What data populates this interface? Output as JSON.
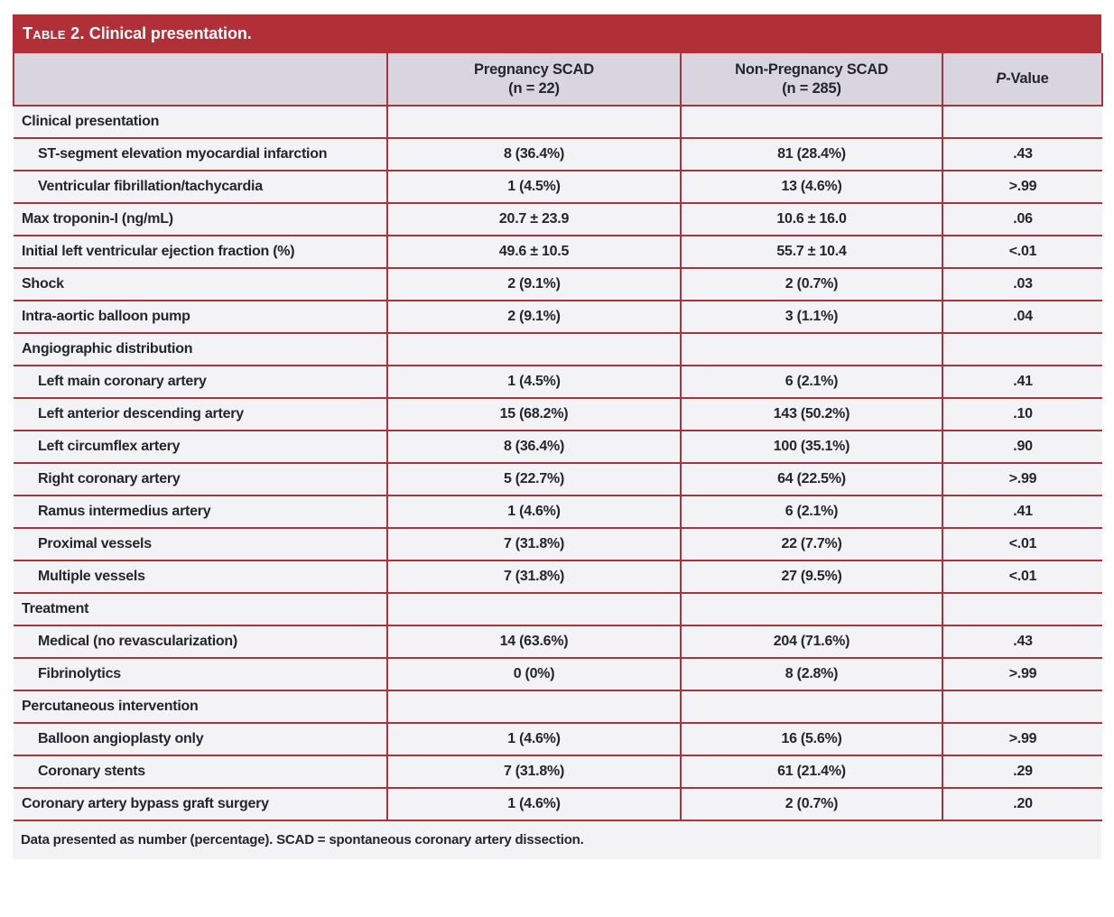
{
  "colors": {
    "bar-red": "#b12f37",
    "line-red": "#a8343b",
    "header-lavender": "#d8d5de",
    "row-bg": "#f3f2f4",
    "text-dark": "#24262d"
  },
  "table": {
    "title": {
      "smallcaps": "Table 2.",
      "rest": "Clinical presentation."
    },
    "columns": {
      "pregnancy": {
        "line1": "Pregnancy SCAD",
        "line2": "(n = 22)"
      },
      "non_pregnancy": {
        "line1": "Non-Pregnancy SCAD",
        "line2": "(n = 285)"
      },
      "p_value": {
        "italic": "P",
        "rest": "-Value"
      }
    },
    "rows": [
      {
        "label": "Clinical presentation",
        "indent": false,
        "section": true,
        "pregnancy": "",
        "non_pregnancy": "",
        "p_value": ""
      },
      {
        "label": "ST-segment elevation myocardial infarction",
        "indent": true,
        "section": false,
        "pregnancy": "8 (36.4%)",
        "non_pregnancy": "81 (28.4%)",
        "p_value": ".43"
      },
      {
        "label": "Ventricular fibrillation/tachycardia",
        "indent": true,
        "section": false,
        "pregnancy": "1 (4.5%)",
        "non_pregnancy": "13 (4.6%)",
        "p_value": ">.99"
      },
      {
        "label": "Max troponin-I (ng/mL)",
        "indent": false,
        "section": false,
        "pregnancy": "20.7 ± 23.9",
        "non_pregnancy": "10.6 ± 16.0",
        "p_value": ".06"
      },
      {
        "label": "Initial left ventricular ejection fraction (%)",
        "indent": false,
        "section": false,
        "pregnancy": "49.6 ± 10.5",
        "non_pregnancy": "55.7 ± 10.4",
        "p_value": "<.01"
      },
      {
        "label": "Shock",
        "indent": false,
        "section": false,
        "pregnancy": "2 (9.1%)",
        "non_pregnancy": "2 (0.7%)",
        "p_value": ".03"
      },
      {
        "label": "Intra-aortic balloon pump",
        "indent": false,
        "section": false,
        "pregnancy": "2 (9.1%)",
        "non_pregnancy": "3 (1.1%)",
        "p_value": ".04"
      },
      {
        "label": "Angiographic distribution",
        "indent": false,
        "section": true,
        "pregnancy": "",
        "non_pregnancy": "",
        "p_value": ""
      },
      {
        "label": "Left main coronary artery",
        "indent": true,
        "section": false,
        "pregnancy": "1 (4.5%)",
        "non_pregnancy": "6 (2.1%)",
        "p_value": ".41"
      },
      {
        "label": "Left anterior descending artery",
        "indent": true,
        "section": false,
        "pregnancy": "15 (68.2%)",
        "non_pregnancy": "143 (50.2%)",
        "p_value": ".10"
      },
      {
        "label": "Left circumflex artery",
        "indent": true,
        "section": false,
        "pregnancy": "8 (36.4%)",
        "non_pregnancy": "100 (35.1%)",
        "p_value": ".90"
      },
      {
        "label": "Right coronary artery",
        "indent": true,
        "section": false,
        "pregnancy": "5 (22.7%)",
        "non_pregnancy": "64 (22.5%)",
        "p_value": ">.99"
      },
      {
        "label": "Ramus intermedius artery",
        "indent": true,
        "section": false,
        "pregnancy": "1 (4.6%)",
        "non_pregnancy": "6 (2.1%)",
        "p_value": ".41"
      },
      {
        "label": "Proximal vessels",
        "indent": true,
        "section": false,
        "pregnancy": "7 (31.8%)",
        "non_pregnancy": "22 (7.7%)",
        "p_value": "<.01"
      },
      {
        "label": "Multiple vessels",
        "indent": true,
        "section": false,
        "pregnancy": "7 (31.8%)",
        "non_pregnancy": "27 (9.5%)",
        "p_value": "<.01"
      },
      {
        "label": "Treatment",
        "indent": false,
        "section": true,
        "pregnancy": "",
        "non_pregnancy": "",
        "p_value": ""
      },
      {
        "label": "Medical (no revascularization)",
        "indent": true,
        "section": false,
        "pregnancy": "14 (63.6%)",
        "non_pregnancy": "204 (71.6%)",
        "p_value": ".43"
      },
      {
        "label": "Fibrinolytics",
        "indent": true,
        "section": false,
        "pregnancy": "0 (0%)",
        "non_pregnancy": "8 (2.8%)",
        "p_value": ">.99"
      },
      {
        "label": "Percutaneous intervention",
        "indent": false,
        "section": true,
        "pregnancy": "",
        "non_pregnancy": "",
        "p_value": ""
      },
      {
        "label": "Balloon angioplasty only",
        "indent": true,
        "section": false,
        "pregnancy": "1 (4.6%)",
        "non_pregnancy": "16 (5.6%)",
        "p_value": ">.99"
      },
      {
        "label": "Coronary stents",
        "indent": true,
        "section": false,
        "pregnancy": "7 (31.8%)",
        "non_pregnancy": "61 (21.4%)",
        "p_value": ".29"
      },
      {
        "label": "Coronary artery bypass graft surgery",
        "indent": false,
        "section": false,
        "pregnancy": "1 (4.6%)",
        "non_pregnancy": "2 (0.7%)",
        "p_value": ".20"
      }
    ],
    "footnote": "Data presented as number (percentage). SCAD = spontaneous coronary artery dissection."
  }
}
